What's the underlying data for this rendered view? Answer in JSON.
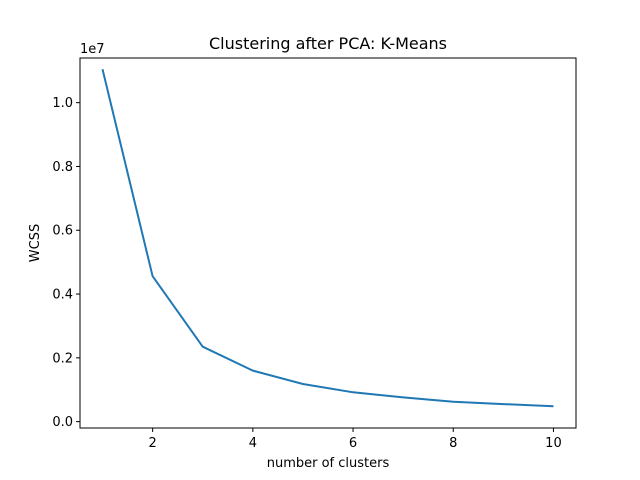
{
  "chart_data": {
    "type": "line",
    "title": "Clustering after PCA: K-Means",
    "xlabel": "number of clusters",
    "ylabel": "WCSS",
    "y_offset_label": "1e7",
    "xlim": [
      0.55,
      10.45
    ],
    "ylim": [
      -0.02,
      1.14
    ],
    "x_ticks": [
      2,
      4,
      6,
      8,
      10
    ],
    "y_ticks": [
      0.0,
      0.2,
      0.4,
      0.6,
      0.8,
      1.0
    ],
    "grid": false,
    "line_color": "#1f77b4",
    "x": [
      1,
      2,
      3,
      4,
      5,
      6,
      7,
      8,
      9,
      10
    ],
    "y": [
      1.105,
      0.456,
      0.235,
      0.16,
      0.118,
      0.092,
      0.076,
      0.062,
      0.055,
      0.048
    ]
  }
}
